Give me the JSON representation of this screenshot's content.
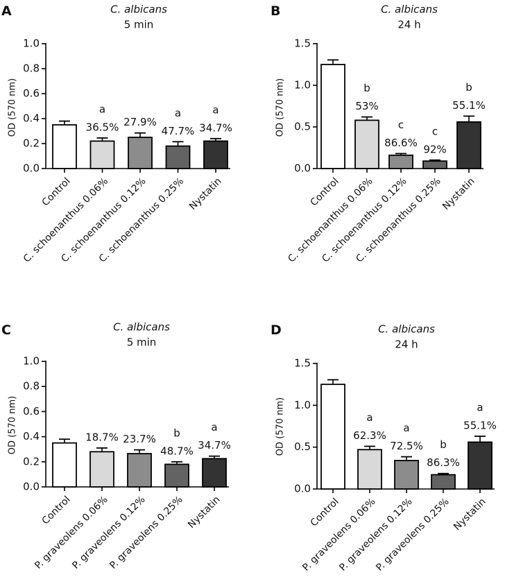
{
  "figure": {
    "background": "#ffffff"
  },
  "chart_data": [
    {
      "type": "bar",
      "panel_label": "A",
      "title": "C. albicans",
      "subtitle": "5 min",
      "ylabel": "OD (570 nm)",
      "ylim": [
        0,
        1.0
      ],
      "yticks": [
        "0.0",
        "0.2",
        "0.4",
        "0.6",
        "0.8",
        "1.0"
      ],
      "ytick_values": [
        0,
        0.2,
        0.4,
        0.6,
        0.8,
        1.0
      ],
      "categories": [
        "Control",
        "C. schoenanthus 0.06%",
        "C. schoenanthus 0.12%",
        "C. schoenanthus 0.25%",
        "Nystatin"
      ],
      "values": [
        0.35,
        0.22,
        0.25,
        0.18,
        0.22
      ],
      "errors": [
        0.03,
        0.025,
        0.035,
        0.035,
        0.02
      ],
      "colors": [
        "#ffffff",
        "#d9d9d9",
        "#8c8c8c",
        "#636363",
        "#333333"
      ],
      "letters": [
        "",
        "a",
        "",
        "a",
        "a"
      ],
      "percents": [
        "",
        "36.5%",
        "27.9%",
        "47.7%",
        "34.7%"
      ]
    },
    {
      "type": "bar",
      "panel_label": "B",
      "title": "C. albicans",
      "subtitle": "24 h",
      "ylabel": "OD (570 nm)",
      "ylim": [
        0,
        1.5
      ],
      "yticks": [
        "0.0",
        "0.5",
        "1.0",
        "1.5"
      ],
      "ytick_values": [
        0,
        0.5,
        1.0,
        1.5
      ],
      "categories": [
        "Control",
        "C. schoenanthus 0.06%",
        "C. schoenanthus 0.12%",
        "C. schoenanthus 0.25%",
        "Nystatin"
      ],
      "values": [
        1.25,
        0.58,
        0.16,
        0.09,
        0.56
      ],
      "errors": [
        0.055,
        0.04,
        0.02,
        0.012,
        0.07
      ],
      "colors": [
        "#ffffff",
        "#d9d9d9",
        "#8c8c8c",
        "#636363",
        "#333333"
      ],
      "letters": [
        "",
        "b",
        "c",
        "c",
        "b"
      ],
      "percents": [
        "",
        "53%",
        "86.6%",
        "92%",
        "55.1%"
      ]
    },
    {
      "type": "bar",
      "panel_label": "C",
      "title": "C. albicans",
      "subtitle": "5 min",
      "ylabel": "OD (570 nm)",
      "ylim": [
        0,
        1.0
      ],
      "yticks": [
        "0.0",
        "0.2",
        "0.4",
        "0.6",
        "0.8",
        "1.0"
      ],
      "ytick_values": [
        0,
        0.2,
        0.4,
        0.6,
        0.8,
        1.0
      ],
      "categories": [
        "Control",
        "P. graveolens 0.06%",
        "P. graveolens 0.12%",
        "P. graveolens 0.25%",
        "Nystatin"
      ],
      "values": [
        0.35,
        0.28,
        0.265,
        0.18,
        0.225
      ],
      "errors": [
        0.03,
        0.03,
        0.03,
        0.02,
        0.02
      ],
      "colors": [
        "#ffffff",
        "#d9d9d9",
        "#8c8c8c",
        "#636363",
        "#333333"
      ],
      "letters": [
        "",
        "",
        "",
        "b",
        "a"
      ],
      "percents": [
        "",
        "18.7%",
        "23.7%",
        "48.7%",
        "34.7%"
      ]
    },
    {
      "type": "bar",
      "panel_label": "D",
      "title": "C. albicans",
      "subtitle": "24 h",
      "ylabel": "OD (570 nm)",
      "ylim": [
        0,
        1.5
      ],
      "yticks": [
        "0.0",
        "0.5",
        "1.0",
        "1.5"
      ],
      "ytick_values": [
        0,
        0.5,
        1.0,
        1.5
      ],
      "categories": [
        "Control",
        "P. graveolens 0.06%",
        "P. graveolens 0.12%",
        "P. graveolens 0.25%",
        "Nystatin"
      ],
      "values": [
        1.25,
        0.47,
        0.34,
        0.17,
        0.56
      ],
      "errors": [
        0.055,
        0.04,
        0.045,
        0.015,
        0.07
      ],
      "colors": [
        "#ffffff",
        "#d9d9d9",
        "#8c8c8c",
        "#636363",
        "#333333"
      ],
      "letters": [
        "",
        "a",
        "a",
        "b",
        "a"
      ],
      "percents": [
        "",
        "62.3%",
        "72.5%",
        "86.3%",
        "55.1%"
      ]
    }
  ]
}
